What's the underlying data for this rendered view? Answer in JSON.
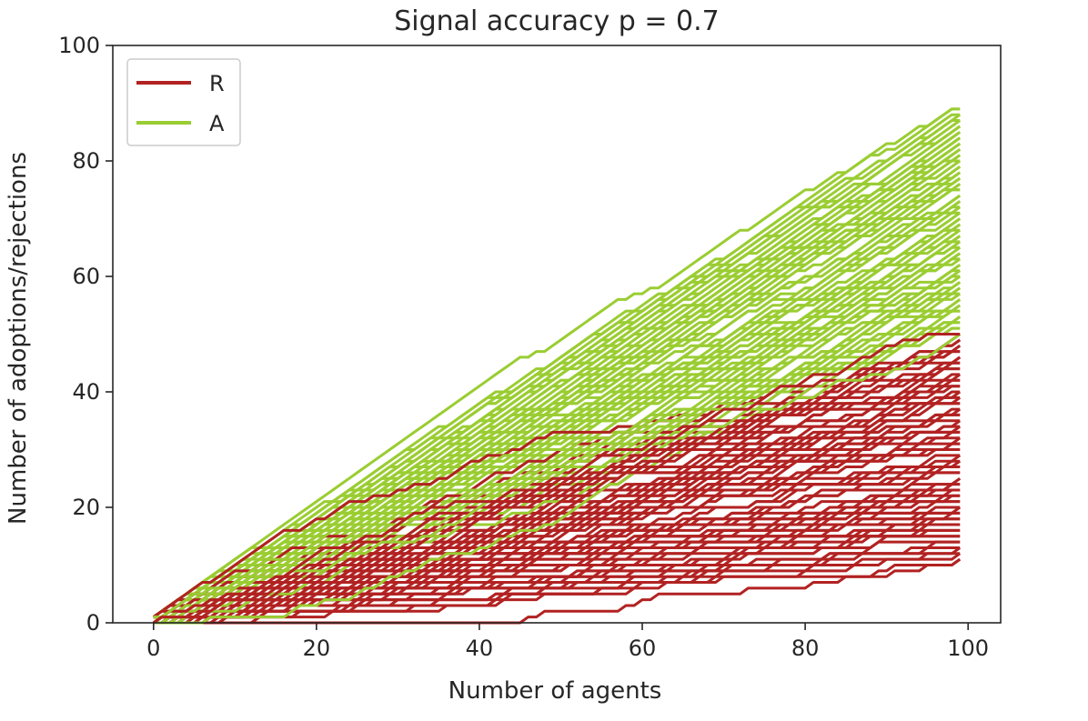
{
  "chart_data": {
    "type": "line",
    "title": "Signal accuracy p =  0.7",
    "xlabel": "Number of agents",
    "ylabel": "Number of adoptions/rejections",
    "xlim": [
      -5,
      104
    ],
    "ylim": [
      0,
      100
    ],
    "xticks": [
      0,
      20,
      40,
      60,
      80,
      100
    ],
    "yticks": [
      0,
      20,
      40,
      60,
      80,
      100
    ],
    "grid": false,
    "legend_position": "top-left",
    "n_runs": 80,
    "x_range": [
      0,
      99
    ],
    "series": [
      {
        "name": "R",
        "color": "#b22222",
        "final_value_range": [
          11,
          50
        ],
        "description_of_band": "red band from 0 up to the upper edge of the rejection paths"
      },
      {
        "name": "A",
        "color": "#9acd32",
        "final_value_range": [
          50,
          89
        ],
        "description_of_band": "green band fanning out to the upper edge of the adoption paths"
      }
    ]
  }
}
